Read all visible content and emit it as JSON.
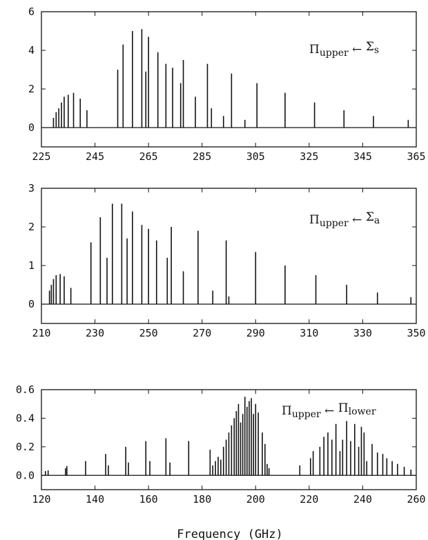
{
  "chart_data": [
    {
      "type": "bar",
      "annotation": {
        "main": "Π",
        "sub": "upper",
        "arrow": "←",
        "rhs_main": "Σ",
        "rhs_sub": "s"
      },
      "xlim": [
        225,
        365
      ],
      "ylim": [
        -1,
        6
      ],
      "x_ticks": [
        225,
        245,
        265,
        285,
        305,
        325,
        345,
        365
      ],
      "y_ticks": [
        0,
        2,
        4,
        6
      ],
      "lines": [
        [
          229.5,
          0.5
        ],
        [
          230.5,
          0.8
        ],
        [
          231.5,
          1.0
        ],
        [
          232.5,
          1.3
        ],
        [
          233.5,
          1.6
        ],
        [
          235,
          1.7
        ],
        [
          237,
          1.8
        ],
        [
          239.5,
          1.5
        ],
        [
          242,
          0.9
        ],
        [
          253.5,
          3.0
        ],
        [
          255.5,
          4.3
        ],
        [
          259,
          5.0
        ],
        [
          262.5,
          5.1
        ],
        [
          264,
          2.9
        ],
        [
          265,
          4.7
        ],
        [
          268.5,
          3.9
        ],
        [
          271.5,
          3.3
        ],
        [
          274,
          3.1
        ],
        [
          277,
          2.3
        ],
        [
          278,
          3.5
        ],
        [
          282.5,
          1.6
        ],
        [
          287,
          3.3
        ],
        [
          288.5,
          1.0
        ],
        [
          293,
          0.6
        ],
        [
          296,
          2.8
        ],
        [
          301,
          0.4
        ],
        [
          305.5,
          2.3
        ],
        [
          316,
          1.8
        ],
        [
          327,
          1.3
        ],
        [
          338,
          0.9
        ],
        [
          349,
          0.6
        ],
        [
          362,
          0.4
        ]
      ]
    },
    {
      "type": "bar",
      "annotation": {
        "main": "Π",
        "sub": "upper",
        "arrow": "←",
        "rhs_main": "Σ",
        "rhs_sub": "a"
      },
      "xlim": [
        210,
        350
      ],
      "ylim": [
        -0.5,
        3
      ],
      "x_ticks": [
        210,
        230,
        250,
        270,
        290,
        310,
        330,
        350
      ],
      "y_ticks": [
        0,
        1,
        2,
        3
      ],
      "lines": [
        [
          213,
          0.35
        ],
        [
          213.7,
          0.5
        ],
        [
          214.5,
          0.65
        ],
        [
          215.5,
          0.75
        ],
        [
          217,
          0.78
        ],
        [
          218.5,
          0.72
        ],
        [
          221,
          0.42
        ],
        [
          228.5,
          1.6
        ],
        [
          232,
          2.25
        ],
        [
          234.5,
          1.2
        ],
        [
          236.5,
          2.6
        ],
        [
          240,
          2.6
        ],
        [
          242,
          1.7
        ],
        [
          244,
          2.4
        ],
        [
          247.5,
          2.05
        ],
        [
          250,
          1.95
        ],
        [
          253,
          1.65
        ],
        [
          257,
          1.2
        ],
        [
          258.5,
          2.0
        ],
        [
          263,
          0.85
        ],
        [
          268.5,
          1.9
        ],
        [
          274,
          0.35
        ],
        [
          279,
          1.65
        ],
        [
          280,
          0.2
        ],
        [
          290,
          1.35
        ],
        [
          301,
          1.0
        ],
        [
          312.5,
          0.75
        ],
        [
          324,
          0.5
        ],
        [
          335.5,
          0.3
        ],
        [
          348,
          0.18
        ]
      ]
    },
    {
      "type": "bar",
      "annotation": {
        "main": "Π",
        "sub": "upper",
        "arrow": "←",
        "rhs_main": "Π",
        "rhs_sub": "lower"
      },
      "xlabel": "Frequency (GHz)",
      "xlim": [
        120,
        260
      ],
      "ylim": [
        -0.1,
        0.6
      ],
      "x_ticks": [
        120,
        140,
        160,
        180,
        200,
        220,
        240,
        260
      ],
      "y_ticks": [
        0.0,
        0.2,
        0.4,
        0.6
      ],
      "y_tick_labels": [
        "0.0",
        "0.2",
        "0.4",
        "0.6"
      ],
      "lines": [
        [
          121.5,
          0.03
        ],
        [
          122.5,
          0.035
        ],
        [
          129,
          0.05
        ],
        [
          129.5,
          0.065
        ],
        [
          136.5,
          0.1
        ],
        [
          144,
          0.15
        ],
        [
          145,
          0.07
        ],
        [
          151.5,
          0.2
        ],
        [
          152.5,
          0.09
        ],
        [
          159,
          0.24
        ],
        [
          160.5,
          0.1
        ],
        [
          166.5,
          0.26
        ],
        [
          168,
          0.09
        ],
        [
          175,
          0.24
        ],
        [
          183,
          0.18
        ],
        [
          184,
          0.07
        ],
        [
          185,
          0.1
        ],
        [
          186,
          0.13
        ],
        [
          187,
          0.11
        ],
        [
          188,
          0.2
        ],
        [
          189,
          0.25
        ],
        [
          190,
          0.3
        ],
        [
          191,
          0.35
        ],
        [
          192,
          0.4
        ],
        [
          192.8,
          0.45
        ],
        [
          193.6,
          0.5
        ],
        [
          194.4,
          0.37
        ],
        [
          195.2,
          0.43
        ],
        [
          196,
          0.55
        ],
        [
          196.8,
          0.48
        ],
        [
          197.6,
          0.52
        ],
        [
          198.4,
          0.54
        ],
        [
          199.2,
          0.43
        ],
        [
          200,
          0.5
        ],
        [
          201,
          0.44
        ],
        [
          202.5,
          0.3
        ],
        [
          203.5,
          0.22
        ],
        [
          204.3,
          0.08
        ],
        [
          205,
          0.05
        ],
        [
          216.5,
          0.07
        ],
        [
          220.5,
          0.12
        ],
        [
          221.5,
          0.17
        ],
        [
          224,
          0.2
        ],
        [
          225.5,
          0.27
        ],
        [
          227,
          0.3
        ],
        [
          228.5,
          0.25
        ],
        [
          230,
          0.36
        ],
        [
          231.5,
          0.17
        ],
        [
          232.5,
          0.25
        ],
        [
          234,
          0.38
        ],
        [
          235.5,
          0.24
        ],
        [
          237,
          0.36
        ],
        [
          238.5,
          0.2
        ],
        [
          239.5,
          0.34
        ],
        [
          240.5,
          0.3
        ],
        [
          241.5,
          0.1
        ],
        [
          243.5,
          0.22
        ],
        [
          245.5,
          0.16
        ],
        [
          247.5,
          0.15
        ],
        [
          249,
          0.12
        ],
        [
          251,
          0.1
        ],
        [
          253,
          0.08
        ],
        [
          255.5,
          0.06
        ],
        [
          258,
          0.04
        ]
      ]
    }
  ]
}
